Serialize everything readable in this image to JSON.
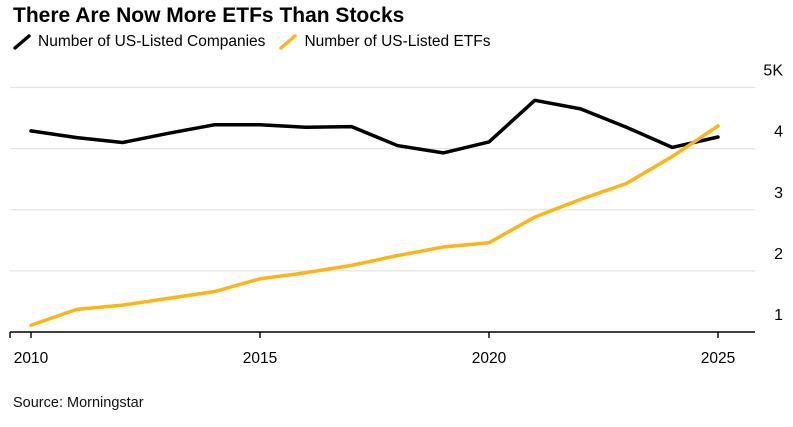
{
  "title": "There Are Now More ETFs Than Stocks",
  "legend": {
    "items": [
      {
        "label": "Number of US-Listed Companies",
        "color": "#000000"
      },
      {
        "label": "Number of US-Listed ETFs",
        "color": "#FCB514"
      }
    ]
  },
  "source": "Source: Morningstar",
  "colors": {
    "background": "#ffffff",
    "companies_line": "#000000",
    "etfs_line": "#FCB514",
    "gridline": "#e4e4e4",
    "axis": "#000000",
    "text": "#000000"
  },
  "chart_data": {
    "type": "line",
    "title": "There Are Now More ETFs Than Stocks",
    "xlabel": "",
    "ylabel": "",
    "x": [
      2010,
      2011,
      2012,
      2013,
      2014,
      2015,
      2016,
      2017,
      2018,
      2019,
      2020,
      2021,
      2022,
      2023,
      2024,
      2025
    ],
    "series": [
      {
        "name": "Number of US-Listed Companies",
        "color": "#000000",
        "values": [
          4290,
          4180,
          4100,
          4250,
          4390,
          4390,
          4350,
          4360,
          4050,
          3930,
          4110,
          4790,
          4650,
          4350,
          4020,
          4190
        ]
      },
      {
        "name": "Number of US-Listed ETFs",
        "color": "#FCB514",
        "values": [
          1110,
          1370,
          1440,
          1550,
          1660,
          1870,
          1970,
          2090,
          2250,
          2390,
          2460,
          2880,
          3170,
          3430,
          3870,
          4370
        ]
      }
    ],
    "xlim": [
      2010,
      2025
    ],
    "ylim": [
      1000,
      5000
    ],
    "y_ticks": [
      {
        "value": 1000,
        "label": "1"
      },
      {
        "value": 2000,
        "label": "2"
      },
      {
        "value": 3000,
        "label": "3"
      },
      {
        "value": 4000,
        "label": "4"
      },
      {
        "value": 5000,
        "label": "5K"
      }
    ],
    "x_ticks": [
      {
        "value": 2010,
        "label": "2010"
      },
      {
        "value": 2015,
        "label": "2015"
      },
      {
        "value": 2020,
        "label": "2020"
      },
      {
        "value": 2025,
        "label": "2025"
      }
    ],
    "grid": "horizontal",
    "legend_position": "top"
  }
}
